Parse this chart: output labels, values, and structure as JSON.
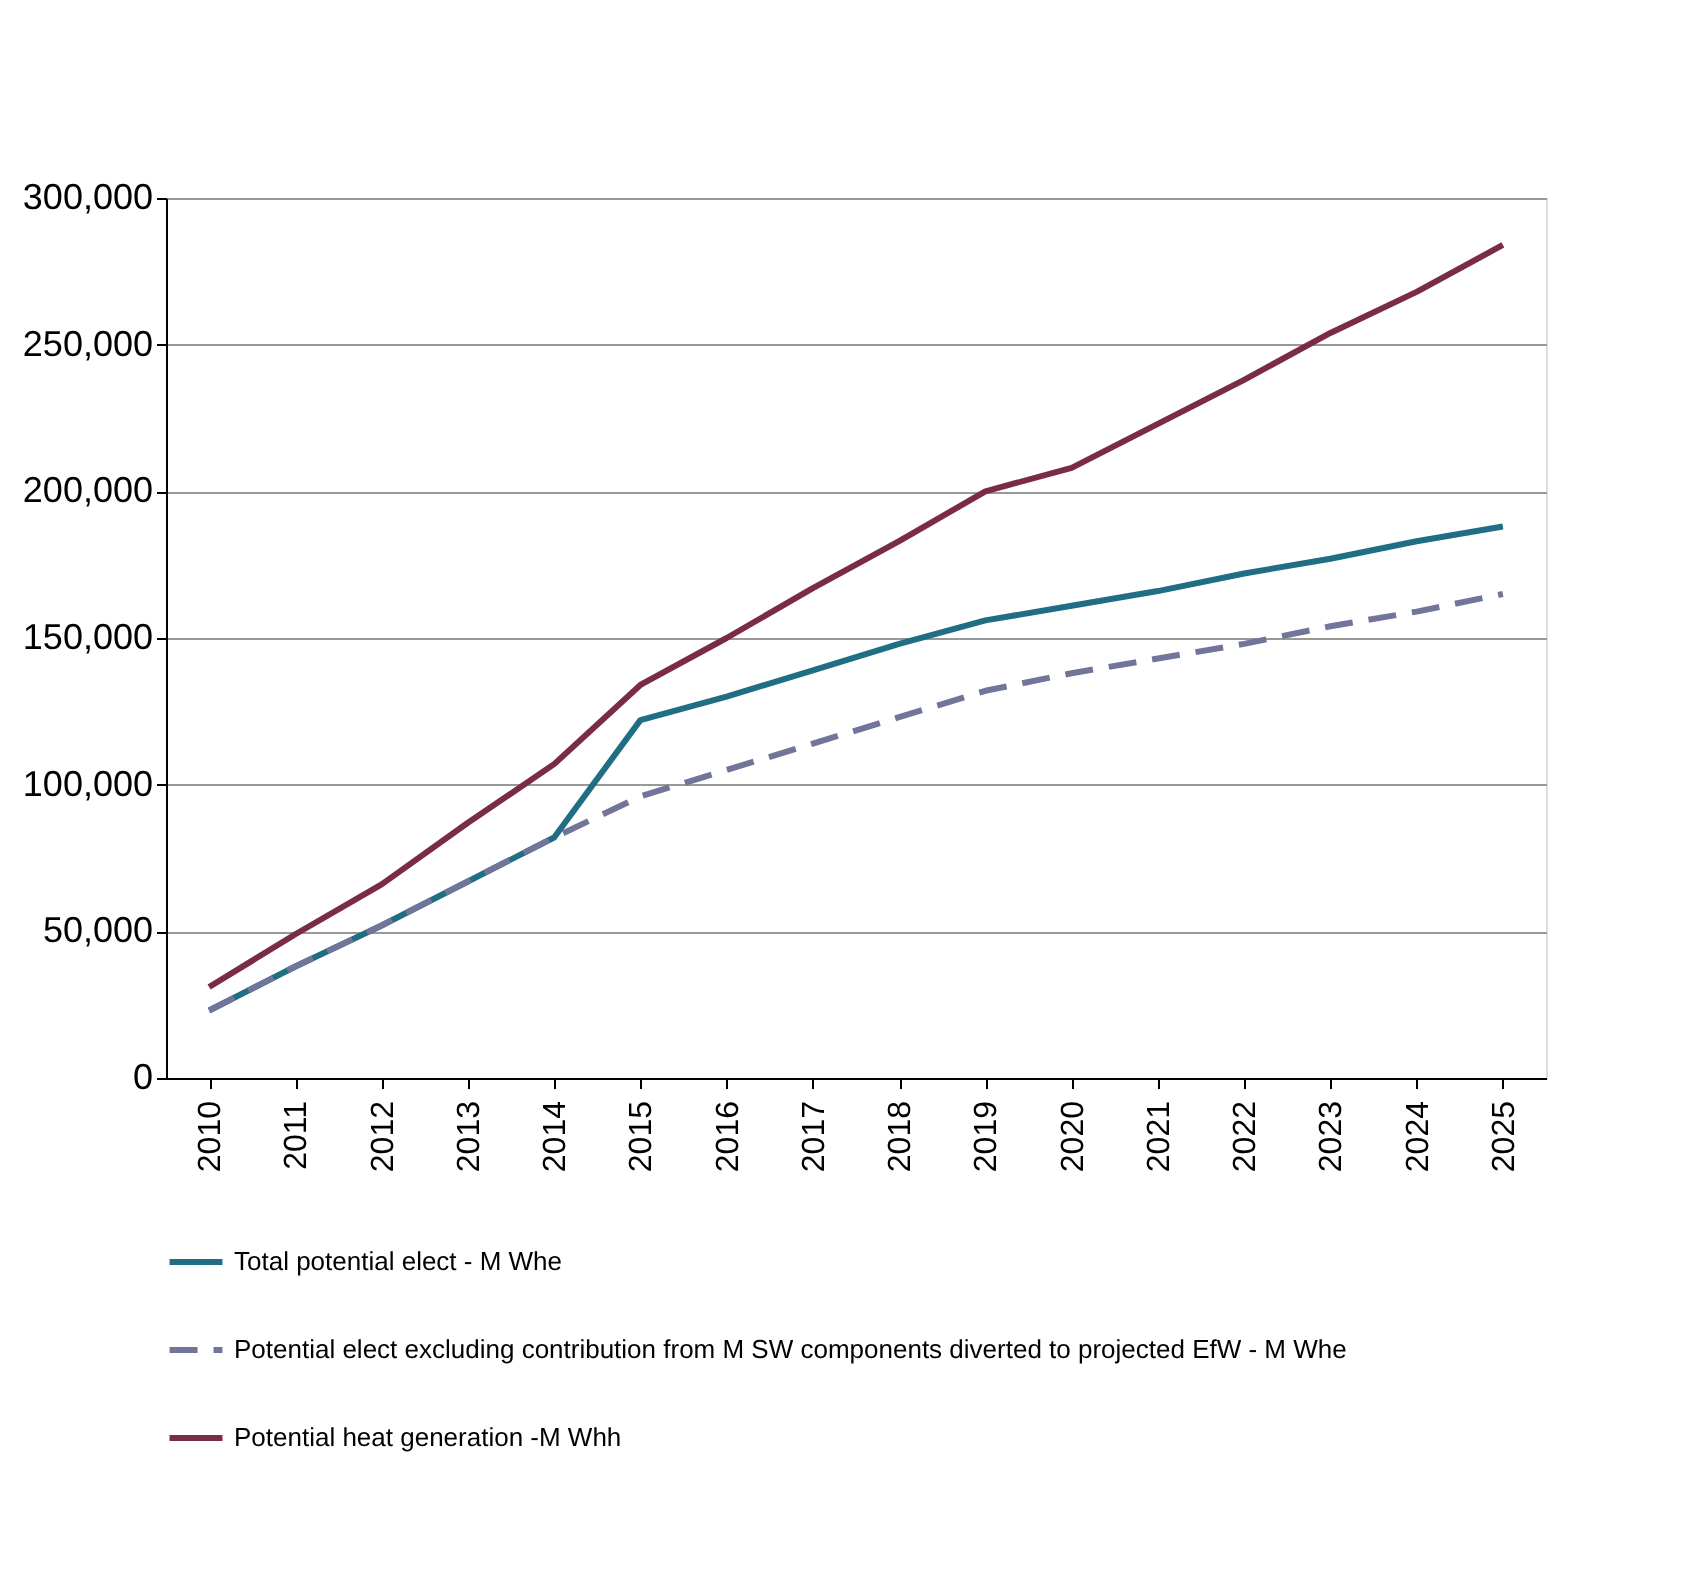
{
  "chart_data": {
    "type": "line",
    "categories": [
      "2010",
      "2011",
      "2012",
      "2013",
      "2014",
      "2015",
      "2016",
      "2017",
      "2018",
      "2019",
      "2020",
      "2021",
      "2022",
      "2023",
      "2024",
      "2025"
    ],
    "series": [
      {
        "name": "Total potential elect - M Whe",
        "color": "#1f6e84",
        "line_style": "solid",
        "values": [
          23000,
          38000,
          52000,
          67000,
          82000,
          122000,
          130000,
          139000,
          148000,
          156000,
          161000,
          166000,
          172000,
          177000,
          183000,
          188000
        ]
      },
      {
        "name": "Potential elect excluding contribution from M SW components diverted to projected EfW - M Whe",
        "color": "#72759a",
        "line_style": "dashed",
        "values": [
          23000,
          38000,
          52000,
          67000,
          82000,
          96000,
          105000,
          114000,
          123000,
          132000,
          138000,
          143000,
          148000,
          154000,
          159000,
          165000
        ]
      },
      {
        "name": "Potential heat generation -M Whh",
        "color": "#7b2c45",
        "line_style": "solid",
        "values": [
          31000,
          49000,
          66000,
          87000,
          107000,
          134000,
          150000,
          167000,
          183000,
          200000,
          208000,
          223000,
          238000,
          254000,
          268000,
          284000
        ]
      }
    ],
    "ylim": [
      0,
      300000
    ],
    "yticks": [
      {
        "value": 0,
        "label": "0"
      },
      {
        "value": 50000,
        "label": "50,000"
      },
      {
        "value": 100000,
        "label": "100,000"
      },
      {
        "value": 150000,
        "label": "150,000"
      },
      {
        "value": 200000,
        "label": "200,000"
      },
      {
        "value": 250000,
        "label": "250,000"
      },
      {
        "value": 300000,
        "label": "300,000"
      }
    ],
    "grid": "y",
    "legend": "bottom",
    "marker": "none"
  }
}
